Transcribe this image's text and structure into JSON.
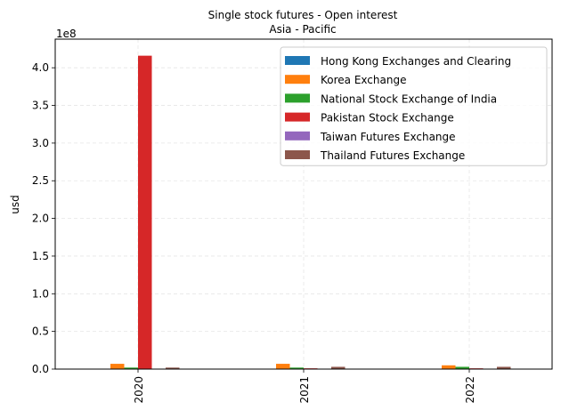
{
  "chart_data": {
    "type": "bar",
    "title": "Single stock futures - Open interest",
    "subtitle": "Asia - Pacific",
    "xlabel": "",
    "ylabel": "usd",
    "y_offset_label": "1e8",
    "categories": [
      "2020",
      "2021",
      "2022"
    ],
    "ylim": [
      0,
      4.38
    ],
    "yticks": [
      "0.0",
      "0.5",
      "1.0",
      "1.5",
      "2.0",
      "2.5",
      "3.0",
      "3.5",
      "4.0"
    ],
    "grid": true,
    "legend_position": "top-right",
    "series": [
      {
        "name": "Hong Kong Exchanges and Clearing",
        "color": "#1f77b4",
        "values": [
          0.0,
          0.0,
          0.0
        ]
      },
      {
        "name": "Korea Exchange",
        "color": "#ff7f0e",
        "values": [
          0.07,
          0.07,
          0.05
        ]
      },
      {
        "name": "National Stock Exchange of India",
        "color": "#2ca02c",
        "values": [
          0.02,
          0.02,
          0.03
        ]
      },
      {
        "name": "Pakistan Stock Exchange",
        "color": "#d62728",
        "values": [
          4.16,
          0.01,
          0.01
        ]
      },
      {
        "name": "Taiwan Futures Exchange",
        "color": "#9467bd",
        "values": [
          0.005,
          0.005,
          0.005
        ]
      },
      {
        "name": "Thailand Futures Exchange",
        "color": "#8c564b",
        "values": [
          0.02,
          0.03,
          0.03
        ]
      }
    ]
  }
}
